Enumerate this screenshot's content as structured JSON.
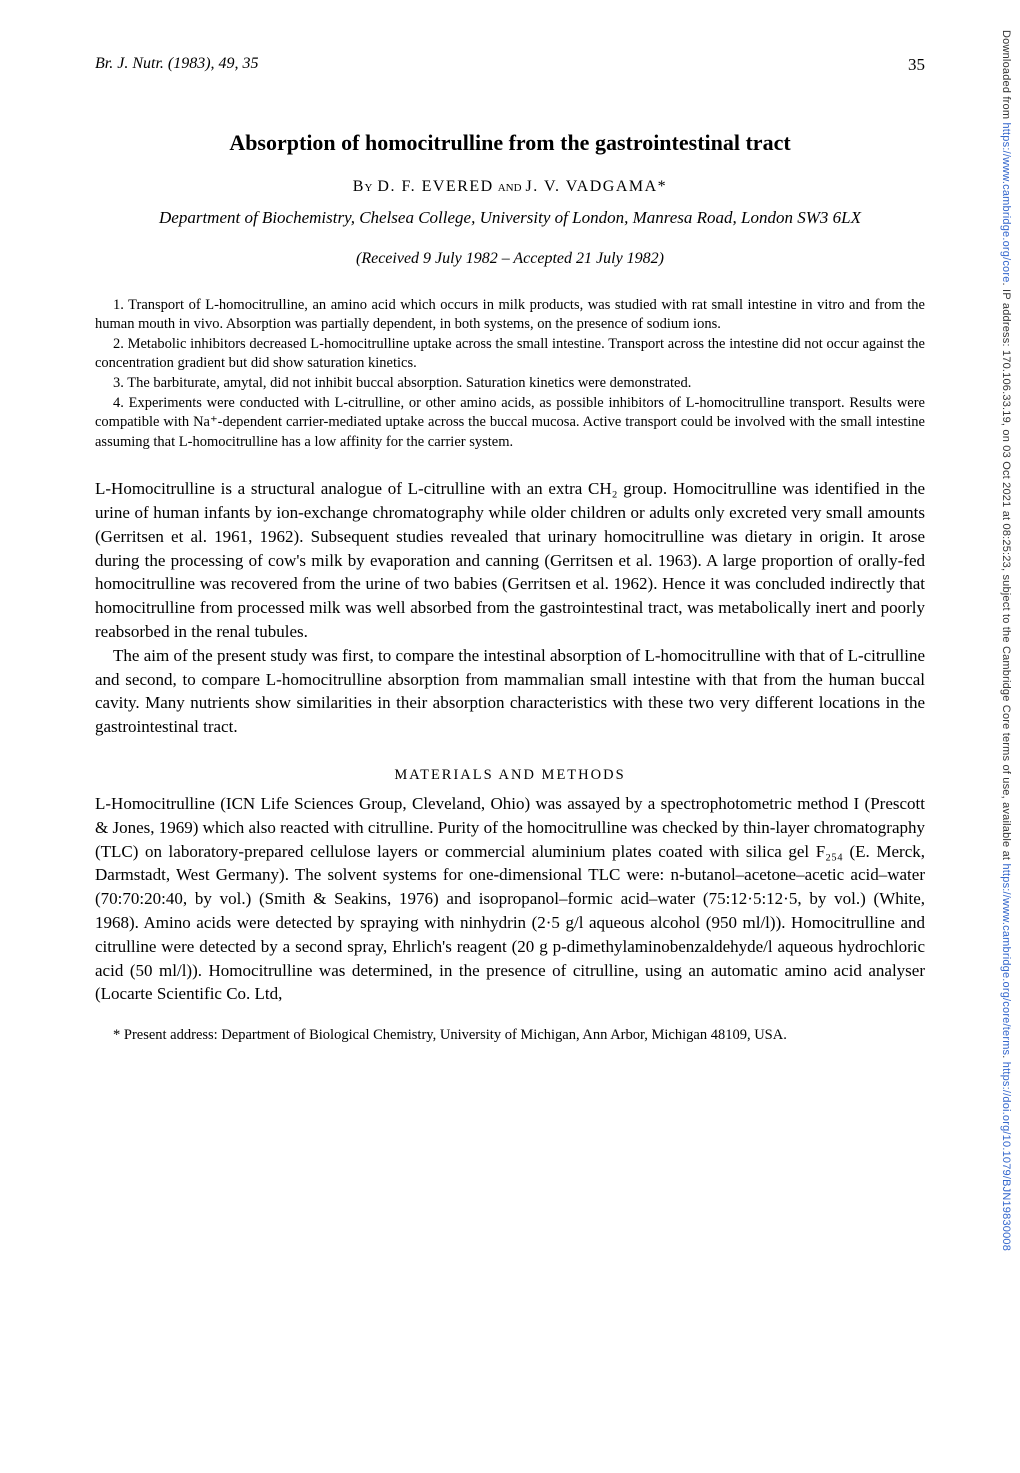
{
  "header": {
    "journal_citation": "Br. J. Nutr. (1983), 49, 35",
    "page_number": "35"
  },
  "article": {
    "title": "Absorption of homocitrulline from the gastrointestinal tract",
    "by_label": "By",
    "and_label": "and",
    "author1": "D. F. EVERED",
    "author2": "J. V. VADGAMA*",
    "affiliation": "Department of Biochemistry, Chelsea College, University of London, Manresa Road, London SW3 6LX",
    "dates": "(Received 9 July 1982 – Accepted 21 July 1982)"
  },
  "abstract_items": {
    "item1": "1. Transport of L-homocitrulline, an amino acid which occurs in milk products, was studied with rat small intestine in vitro and from the human mouth in vivo. Absorption was partially dependent, in both systems, on the presence of sodium ions.",
    "item2": "2. Metabolic inhibitors decreased L-homocitrulline uptake across the small intestine. Transport across the intestine did not occur against the concentration gradient but did show saturation kinetics.",
    "item3": "3. The barbiturate, amytal, did not inhibit buccal absorption. Saturation kinetics were demonstrated.",
    "item4": "4. Experiments were conducted with L-citrulline, or other amino acids, as possible inhibitors of L-homocitrulline transport. Results were compatible with Na⁺-dependent carrier-mediated uptake across the buccal mucosa. Active transport could be involved with the small intestine assuming that L-homocitrulline has a low affinity for the carrier system."
  },
  "body": {
    "para1": "L-Homocitrulline is a structural analogue of L-citrulline with an extra CH₂ group. Homocitrulline was identified in the urine of human infants by ion-exchange chromatography while older children or adults only excreted very small amounts (Gerritsen et al. 1961, 1962). Subsequent studies revealed that urinary homocitrulline was dietary in origin. It arose during the processing of cow's milk by evaporation and canning (Gerritsen et al. 1963). A large proportion of orally-fed homocitrulline was recovered from the urine of two babies (Gerritsen et al. 1962). Hence it was concluded indirectly that homocitrulline from processed milk was well absorbed from the gastrointestinal tract, was metabolically inert and poorly reabsorbed in the renal tubules.",
    "para2": "The aim of the present study was first, to compare the intestinal absorption of L-homocitrulline with that of L-citrulline and second, to compare L-homocitrulline absorption from mammalian small intestine with that from the human buccal cavity. Many nutrients show similarities in their absorption characteristics with these two very different locations in the gastrointestinal tract.",
    "methods_heading": "MATERIALS AND METHODS",
    "para3": "L-Homocitrulline (ICN Life Sciences Group, Cleveland, Ohio) was assayed by a spectrophotometric method I (Prescott & Jones, 1969) which also reacted with citrulline. Purity of the homocitrulline was checked by thin-layer chromatography (TLC) on laboratory-prepared cellulose layers or commercial aluminium plates coated with silica gel F₂₅₄ (E. Merck, Darmstadt, West Germany). The solvent systems for one-dimensional TLC were: n-butanol–acetone–acetic acid–water (70:70:20:40, by vol.) (Smith & Seakins, 1976) and isopropanol–formic acid–water (75:12·5:12·5, by vol.) (White, 1968). Amino acids were detected by spraying with ninhydrin (2·5 g/l aqueous alcohol (950 ml/l)). Homocitrulline and citrulline were detected by a second spray, Ehrlich's reagent (20 g p-dimethylaminobenzaldehyde/l aqueous hydrochloric acid (50 ml/l)). Homocitrulline was determined, in the presence of citrulline, using an automatic amino acid analyser (Locarte Scientific Co. Ltd,"
  },
  "footnote": {
    "text": "* Present address: Department of Biological Chemistry, University of Michigan, Ann Arbor, Michigan 48109, USA."
  },
  "sidebar": {
    "prefix": "Downloaded from ",
    "link1": "https://www.cambridge.org/core",
    "middle": ". IP address: 170.106.33.19, on 03 Oct 2021 at 08:25:23, subject to the Cambridge Core terms of use, available at ",
    "link2": "https://www.cambridge.org/core/terms",
    "sep": ". ",
    "link3": "https://doi.org/10.1079/BJN19830008"
  }
}
